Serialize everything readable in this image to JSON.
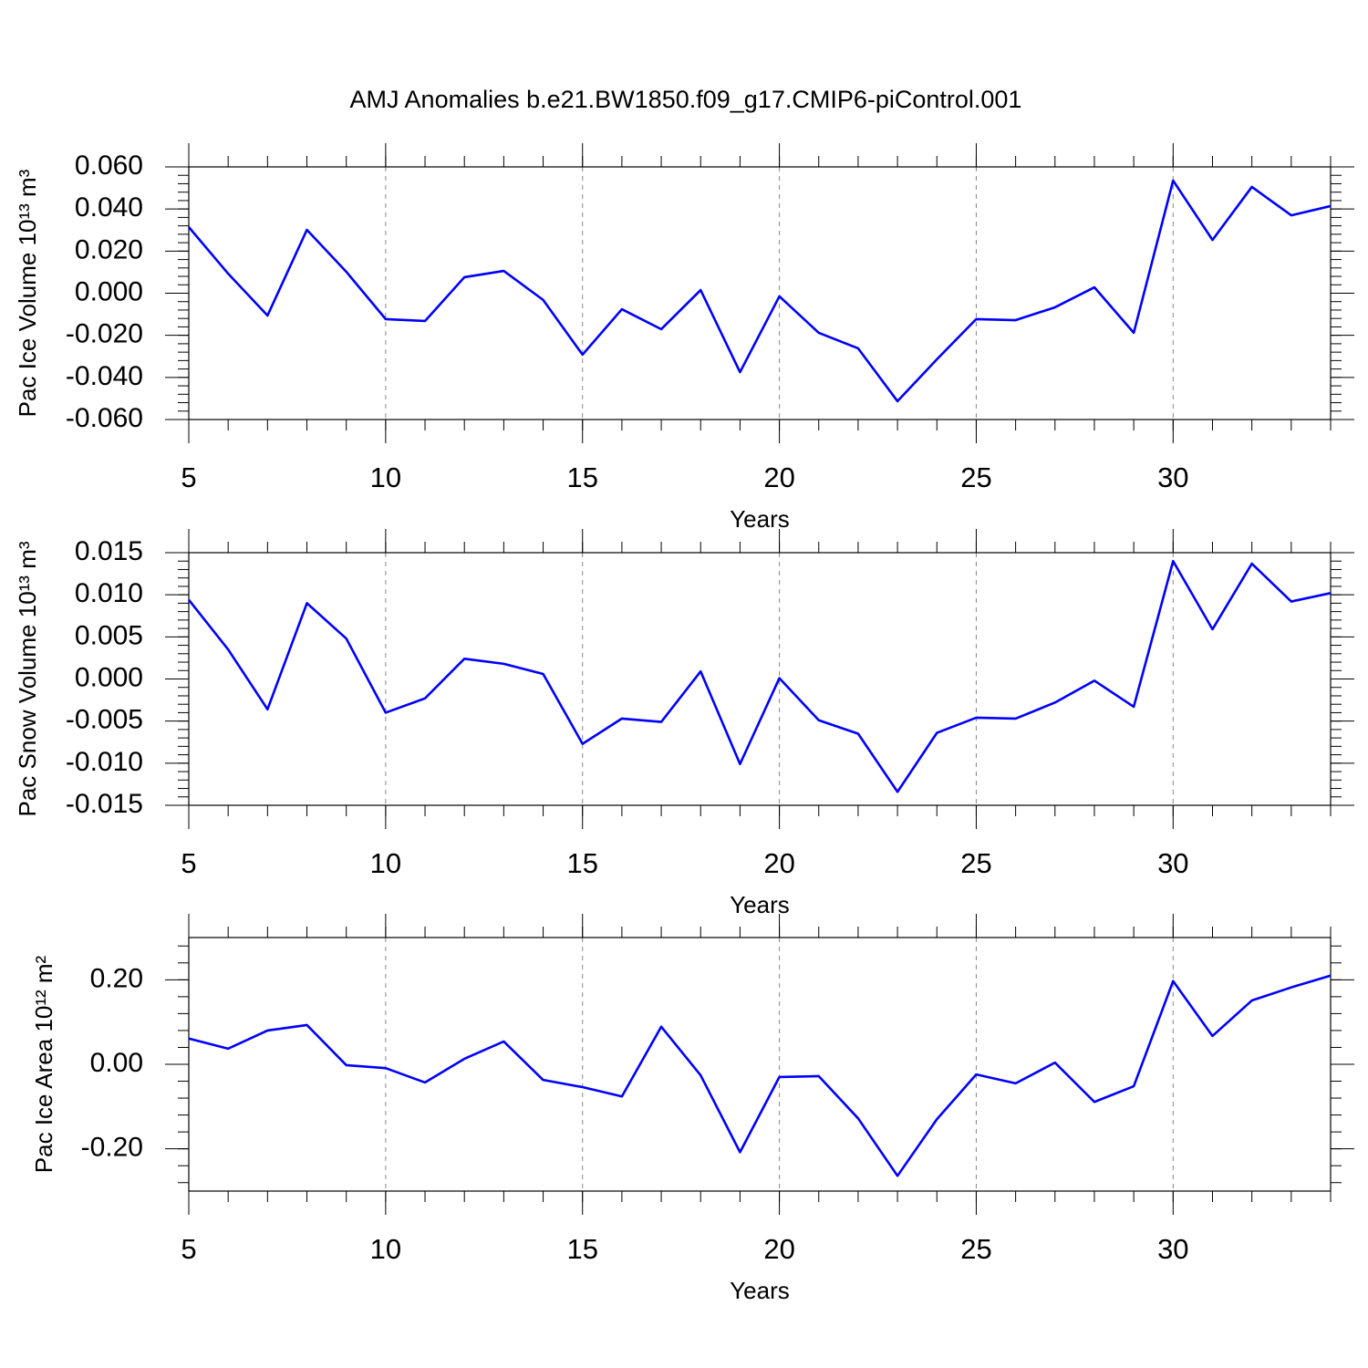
{
  "chart_data": [
    {
      "type": "line",
      "title": "AMJ Anomalies b.e21.BW1850.f09_g17.CMIP6-piControl.001",
      "xlabel": "Years",
      "ylabel": "Pac Ice Volume 10¹³ m³",
      "x": [
        5,
        6,
        7,
        8,
        9,
        10,
        11,
        12,
        13,
        14,
        15,
        16,
        17,
        18,
        19,
        20,
        21,
        22,
        23,
        24,
        25,
        26,
        27,
        28,
        29,
        30,
        31,
        32,
        33,
        34
      ],
      "values": [
        0.0314,
        0.0093,
        -0.0106,
        0.0301,
        0.0102,
        -0.0123,
        -0.0132,
        0.0076,
        0.0106,
        -0.0032,
        -0.0292,
        -0.0076,
        -0.0171,
        0.0015,
        -0.0375,
        -0.0015,
        -0.0188,
        -0.0262,
        -0.0513,
        -0.0314,
        -0.0123,
        -0.0128,
        -0.0067,
        0.0028,
        -0.0188,
        0.0535,
        0.0253,
        0.0505,
        0.037,
        0.0414
      ],
      "color": "#0000ff",
      "xlim": [
        5,
        34
      ],
      "xticks": [
        5,
        10,
        15,
        20,
        25,
        30
      ],
      "ylim": [
        -0.06,
        0.06
      ],
      "yticks": [
        {
          "value": -0.06,
          "label": "-0.060"
        },
        {
          "value": -0.04,
          "label": "-0.040"
        },
        {
          "value": -0.02,
          "label": "-0.020"
        },
        {
          "value": 0,
          "label": "0.000"
        },
        {
          "value": 0.02,
          "label": "0.020"
        },
        {
          "value": 0.04,
          "label": "0.040"
        },
        {
          "value": 0.06,
          "label": "0.060"
        }
      ],
      "grid": true
    },
    {
      "type": "line",
      "xlabel": "Years",
      "ylabel": "Pac Snow Volume 10¹³ m³",
      "x": [
        5,
        6,
        7,
        8,
        9,
        10,
        11,
        12,
        13,
        14,
        15,
        16,
        17,
        18,
        19,
        20,
        21,
        22,
        23,
        24,
        25,
        26,
        27,
        28,
        29,
        30,
        31,
        32,
        33,
        34
      ],
      "values": [
        0.0094,
        0.0035,
        -0.0036,
        0.009,
        0.0048,
        -0.004,
        -0.0023,
        0.0024,
        0.0018,
        0.0006,
        -0.0077,
        -0.0047,
        -0.0051,
        0.0009,
        -0.0101,
        0.0001,
        -0.0049,
        -0.0065,
        -0.0134,
        -0.0064,
        -0.0046,
        -0.0047,
        -0.0028,
        -0.0002,
        -0.0033,
        0.014,
        0.0059,
        0.0137,
        0.0092,
        0.0102
      ],
      "color": "#0000ff",
      "xlim": [
        5,
        34
      ],
      "xticks": [
        5,
        10,
        15,
        20,
        25,
        30
      ],
      "ylim": [
        -0.015,
        0.015
      ],
      "yticks": [
        {
          "value": -0.015,
          "label": "-0.015"
        },
        {
          "value": -0.01,
          "label": "-0.010"
        },
        {
          "value": -0.005,
          "label": "-0.005"
        },
        {
          "value": 0,
          "label": "0.000"
        },
        {
          "value": 0.005,
          "label": "0.005"
        },
        {
          "value": 0.01,
          "label": "0.010"
        },
        {
          "value": 0.015,
          "label": "0.015"
        }
      ],
      "grid": true
    },
    {
      "type": "line",
      "xlabel": "Years",
      "ylabel": "Pac Ice Area 10¹² m²",
      "x": [
        5,
        6,
        7,
        8,
        9,
        10,
        11,
        12,
        13,
        14,
        15,
        16,
        17,
        18,
        19,
        20,
        21,
        22,
        23,
        24,
        25,
        26,
        27,
        28,
        29,
        30,
        31,
        32,
        33,
        34
      ],
      "values": [
        0.061,
        0.037,
        0.08,
        0.093,
        -0.002,
        -0.009,
        -0.043,
        0.013,
        0.054,
        -0.037,
        -0.054,
        -0.076,
        0.089,
        -0.026,
        -0.208,
        -0.03,
        -0.028,
        -0.128,
        -0.264,
        -0.13,
        -0.024,
        -0.045,
        0.004,
        -0.089,
        -0.052,
        0.197,
        0.067,
        0.151,
        0.182,
        0.21
      ],
      "color": "#0000ff",
      "xlim": [
        5,
        34
      ],
      "xticks": [
        5,
        10,
        15,
        20,
        25,
        30
      ],
      "ylim": [
        -0.3,
        0.3
      ],
      "yticks": [
        {
          "value": -0.2,
          "label": "-0.20"
        },
        {
          "value": 0,
          "label": "0.00"
        },
        {
          "value": 0.2,
          "label": "0.20"
        }
      ],
      "grid": true
    }
  ]
}
